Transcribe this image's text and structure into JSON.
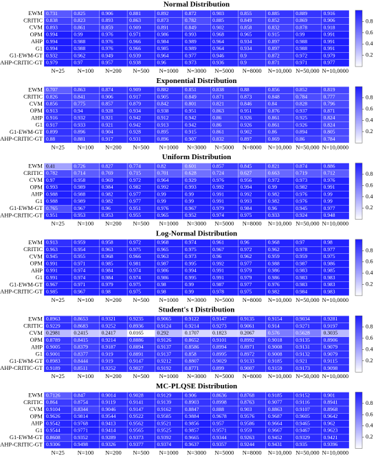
{
  "chart_data": [
    {
      "type": "heatmap",
      "title": "Normal Distribution",
      "rows": [
        "EWM",
        "CRITIC",
        "CVM",
        "OPM",
        "AHP",
        "G1",
        "G1-EWM-GT",
        "AHP-CRITIC-GT"
      ],
      "columns": [
        "N=25",
        "N=100",
        "N=200",
        "N=500",
        "N=1000",
        "N=3000",
        "N=5000",
        "N=8000",
        "N=10,000",
        "N=50,000",
        "N=10,0000"
      ],
      "values": [
        [
          0.731,
          0.825,
          0.906,
          0.881,
          0.892,
          0.872,
          0.903,
          0.855,
          0.885,
          0.889,
          0.916
        ],
        [
          0.838,
          0.823,
          0.893,
          0.863,
          0.873,
          0.782,
          0.885,
          0.849,
          0.852,
          0.869,
          0.906
        ],
        [
          0.893,
          0.861,
          0.859,
          0.909,
          0.891,
          0.849,
          0.902,
          0.858,
          0.832,
          0.878,
          0.918
        ],
        [
          0.994,
          0.99,
          0.976,
          0.971,
          0.986,
          0.993,
          0.968,
          0.965,
          0.915,
          0.99,
          0.991
        ],
        [
          0.994,
          0.988,
          0.976,
          0.966,
          0.984,
          0.989,
          0.964,
          0.934,
          0.897,
          0.988,
          0.991
        ],
        [
          0.994,
          0.988,
          0.976,
          0.966,
          0.985,
          0.989,
          0.964,
          0.934,
          0.897,
          0.988,
          0.991
        ],
        [
          0.932,
          0.962,
          0.949,
          0.939,
          0.964,
          0.977,
          0.946,
          0.9,
          0.872,
          0.972,
          0.979
        ],
        [
          0.979,
          0.97,
          0.957,
          0.938,
          0.96,
          0.973,
          0.936,
          0.9,
          0.871,
          0.971,
          0.977
        ]
      ],
      "clim": [
        0,
        1
      ],
      "cticks": [
        0.2,
        0.4,
        0.6,
        0.8
      ],
      "cmap": [
        "#ffffff",
        "#1c1cff"
      ]
    },
    {
      "type": "heatmap",
      "title": "Exponential Distribution",
      "rows": [
        "EWM",
        "CRITIC",
        "CVM",
        "OPM",
        "AHP",
        "G1",
        "G1-EWM-GT",
        "AHP-CRITIC-GT"
      ],
      "columns": [
        "N=25",
        "N=100",
        "N=200",
        "N=500",
        "N=1000",
        "N=3000",
        "N=5000",
        "N=8000",
        "N=10,000",
        "N=50,000",
        "N=10,0000"
      ],
      "values": [
        [
          0.707,
          0.863,
          0.874,
          0.909,
          0.882,
          0.851,
          0.838,
          0.88,
          0.856,
          0.852,
          0.819
        ],
        [
          0.826,
          0.841,
          0.906,
          0.917,
          0.905,
          0.849,
          0.871,
          0.873,
          0.848,
          0.784,
          0.777
        ],
        [
          0.856,
          0.775,
          0.857,
          0.879,
          0.842,
          0.801,
          0.821,
          0.846,
          0.84,
          0.828,
          0.796
        ],
        [
          0.913,
          0.94,
          0.928,
          0.934,
          0.938,
          0.951,
          0.863,
          0.951,
          0.876,
          0.937,
          0.871
        ],
        [
          0.916,
          0.932,
          0.921,
          0.942,
          0.912,
          0.942,
          0.86,
          0.926,
          0.861,
          0.925,
          0.824
        ],
        [
          0.917,
          0.933,
          0.921,
          0.942,
          0.913,
          0.942,
          0.86,
          0.926,
          0.861,
          0.926,
          0.824
        ],
        [
          0.899,
          0.896,
          0.904,
          0.928,
          0.895,
          0.915,
          0.861,
          0.902,
          0.86,
          0.894,
          0.805
        ],
        [
          0.88,
          0.881,
          0.917,
          0.931,
          0.896,
          0.907,
          0.832,
          0.897,
          0.869,
          0.86,
          0.784
        ]
      ],
      "clim": [
        0,
        1
      ],
      "cticks": [
        0.2,
        0.4,
        0.6,
        0.8
      ],
      "cmap": [
        "#ffffff",
        "#1c1cff"
      ]
    },
    {
      "type": "heatmap",
      "title": "Uniform Distribution",
      "rows": [
        "EWM",
        "CRITIC",
        "CVM",
        "OPM",
        "AHP",
        "G1",
        "G1-EWM-GT",
        "AHP-CRITIC-GT"
      ],
      "columns": [
        "N=25",
        "N=100",
        "N=200",
        "N=500",
        "N=1000",
        "N=3000",
        "N=5000",
        "N=8000",
        "N=10,000",
        "N=50,000",
        "N=10,0000"
      ],
      "values": [
        [
          0.41,
          0.726,
          0.827,
          0.774,
          0.82,
          0.601,
          0.857,
          0.845,
          0.821,
          0.874,
          0.886
        ],
        [
          0.782,
          0.714,
          0.769,
          0.715,
          0.701,
          0.628,
          0.724,
          0.627,
          0.663,
          0.719,
          0.712
        ],
        [
          0.97,
          0.958,
          0.969,
          0.972,
          0.964,
          0.929,
          0.976,
          0.956,
          0.972,
          0.973,
          0.976
        ],
        [
          0.993,
          0.989,
          0.984,
          0.982,
          0.992,
          0.993,
          0.992,
          0.994,
          0.99,
          0.982,
          0.991
        ],
        [
          0.988,
          0.988,
          0.982,
          0.977,
          0.99,
          0.99,
          0.991,
          0.992,
          0.982,
          0.976,
          0.99
        ],
        [
          0.988,
          0.989,
          0.982,
          0.977,
          0.99,
          0.99,
          0.991,
          0.993,
          0.982,
          0.976,
          0.99
        ],
        [
          0.765,
          0.967,
          0.96,
          0.951,
          0.976,
          0.967,
          0.979,
          0.984,
          0.96,
          0.945,
          0.977
        ],
        [
          0.951,
          0.953,
          0.953,
          0.955,
          0.965,
          0.952,
          0.974,
          0.975,
          0.933,
          0.924,
          0.948
        ]
      ],
      "clim": [
        0,
        1
      ],
      "cticks": [
        0.2,
        0.4,
        0.6,
        0.8
      ],
      "cmap": [
        "#ffffff",
        "#1c1cff"
      ]
    },
    {
      "type": "heatmap",
      "title": "Log-Normal Distribution",
      "rows": [
        "EWM",
        "CRITIC",
        "CVM",
        "OPM",
        "AHP",
        "G1",
        "G1-EWM-GT",
        "AHP-CRITIC-GT"
      ],
      "columns": [
        "N=25",
        "N=100",
        "N=200",
        "N=500",
        "N=1000",
        "N=3000",
        "N=5000",
        "N=8000",
        "N=10,000",
        "N=50,000",
        "N=10,0000"
      ],
      "values": [
        [
          0.913,
          0.959,
          0.958,
          0.972,
          0.968,
          0.974,
          0.961,
          0.96,
          0.968,
          0.97,
          0.98
        ],
        [
          0.963,
          0.954,
          0.963,
          0.975,
          0.965,
          0.975,
          0.967,
          0.972,
          0.962,
          0.978,
          0.977
        ],
        [
          0.945,
          0.955,
          0.968,
          0.966,
          0.963,
          0.973,
          0.96,
          0.962,
          0.959,
          0.959,
          0.975
        ],
        [
          0.991,
          0.971,
          0.985,
          0.981,
          0.987,
          0.995,
          0.992,
          0.977,
          0.988,
          0.987,
          0.986
        ],
        [
          0.991,
          0.974,
          0.984,
          0.974,
          0.986,
          0.994,
          0.991,
          0.979,
          0.986,
          0.983,
          0.985
        ],
        [
          0.991,
          0.974,
          0.984,
          0.974,
          0.986,
          0.995,
          0.991,
          0.979,
          0.986,
          0.983,
          0.983
        ],
        [
          0.967,
          0.971,
          0.979,
          0.975,
          0.98,
          0.99,
          0.987,
          0.977,
          0.976,
          0.983,
          0.983
        ],
        [
          0.985,
          0.967,
          0.98,
          0.975,
          0.98,
          0.99,
          0.978,
          0.975,
          0.982,
          0.984,
          0.983
        ]
      ],
      "clim": [
        0,
        1
      ],
      "cticks": [
        0.2,
        0.4,
        0.6,
        0.8
      ],
      "cmap": [
        "#ffffff",
        "#1c1cff"
      ]
    },
    {
      "type": "heatmap",
      "title": "Student's t Distribution",
      "rows": [
        "EWM",
        "CRITIC",
        "CVM",
        "OPM",
        "AHP",
        "G1",
        "G1-EWM-GT",
        "AHP-CRITIC-GT"
      ],
      "columns": [
        "N=25",
        "N=100",
        "N=200",
        "N=500",
        "N=1000",
        "N=3000",
        "N=5000",
        "N=8000",
        "N=10,000",
        "N=50,000",
        "N=10,0000"
      ],
      "values": [
        [
          0.8963,
          0.8653,
          0.9321,
          0.9235,
          0.9065,
          0.9122,
          0.9147,
          0.9135,
          0.9154,
          0.9034,
          0.9281
        ],
        [
          0.9229,
          0.8683,
          0.9252,
          0.8936,
          0.9124,
          0.9214,
          0.9273,
          0.9061,
          0.914,
          0.9271,
          0.9197
        ],
        [
          0.2981,
          0.2415,
          0.2417,
          0.0165,
          0.292,
          0.1707,
          0.1823,
          0.2067,
          0.576,
          0.5628,
          0.3035
        ],
        [
          0.8789,
          0.8415,
          0.9214,
          0.8886,
          0.9126,
          0.8652,
          0.9101,
          0.8992,
          0.9018,
          0.9135,
          0.8906
        ],
        [
          0.9005,
          0.8379,
          0.9187,
          0.8894,
          0.9137,
          0.8586,
          0.8994,
          0.8971,
          0.9008,
          0.9131,
          0.9079
        ],
        [
          0.9001,
          0.8377,
          0.919,
          0.8891,
          0.9137,
          0.858,
          0.8995,
          0.8972,
          0.9008,
          0.9132,
          0.9079
        ],
        [
          0.8983,
          0.8444,
          0.919,
          0.9147,
          0.9212,
          0.8807,
          0.9029,
          0.9133,
          0.9185,
          0.921,
          0.9115
        ],
        [
          0.9189,
          0.8511,
          0.9252,
          0.9027,
          0.9192,
          0.8771,
          0.899,
          0.9007,
          0.9159,
          0.9173,
          0.9098
        ]
      ],
      "clim": [
        0,
        1
      ],
      "cticks": [
        0.2,
        0.4,
        0.6,
        0.8
      ],
      "cmap": [
        "#ffffff",
        "#1c1cff"
      ]
    },
    {
      "type": "heatmap",
      "title": "MC-PLQSE Distribution",
      "rows": [
        "EWM",
        "CRITIC",
        "CVM",
        "OPM",
        "AHP",
        "G1",
        "G1-EWM-GT",
        "AHP-CRITIC-GT"
      ],
      "columns": [
        "N=25",
        "N=100",
        "N=200",
        "N=500",
        "N=1000",
        "N=3000",
        "N=5000",
        "N=8000",
        "N=10,000",
        "N=50,000",
        "N=10,0000"
      ],
      "values": [
        [
          0.7126,
          0.847,
          0.9014,
          0.9028,
          0.9129,
          0.906,
          0.8636,
          0.8768,
          0.9185,
          0.9152,
          0.901
        ],
        [
          0.864,
          0.8754,
          0.9119,
          0.9141,
          0.9139,
          0.8903,
          0.8998,
          0.8763,
          0.9077,
          0.9116,
          0.8941
        ],
        [
          0.9104,
          0.8344,
          0.9046,
          0.9147,
          0.9162,
          0.8847,
          0.888,
          0.903,
          0.8863,
          0.9107,
          0.8968
        ],
        [
          0.9626,
          0.9814,
          0.9544,
          0.9522,
          0.9585,
          0.9884,
          0.9678,
          0.9576,
          0.9687,
          0.9605,
          0.9642
        ],
        [
          0.9542,
          0.9768,
          0.9413,
          0.9562,
          0.9521,
          0.9856,
          0.957,
          0.9586,
          0.9664,
          0.9465,
          0.962
        ],
        [
          0.9544,
          0.9771,
          0.9414,
          0.9565,
          0.9525,
          0.9857,
          0.9571,
          0.959,
          0.9667,
          0.9467,
          0.9623
        ],
        [
          0.8608,
          0.9352,
          0.9289,
          0.9373,
          0.9392,
          0.9665,
          0.9344,
          0.9263,
          0.9452,
          0.9329,
          0.9421
        ],
        [
          0.9306,
          0.9498,
          0.9326,
          0.9377,
          0.9374,
          0.9637,
          0.9357,
          0.9244,
          0.9431,
          0.935,
          0.9396
        ]
      ],
      "clim": [
        0,
        1
      ],
      "cticks": [
        0.2,
        0.4,
        0.6,
        0.8
      ],
      "cmap": [
        "#ffffff",
        "#1c1cff"
      ]
    }
  ]
}
